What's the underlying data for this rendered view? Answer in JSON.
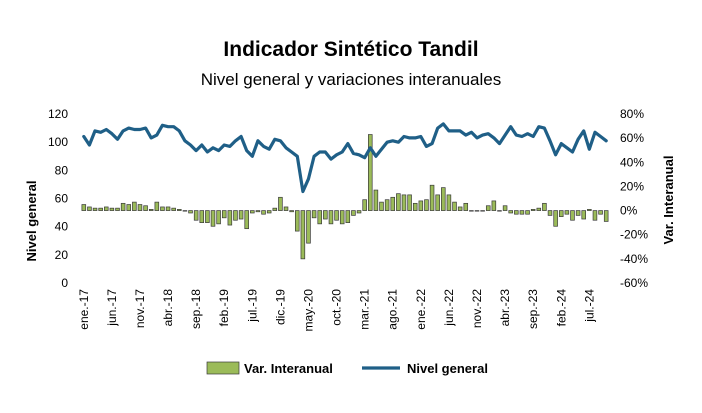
{
  "chart_data": {
    "type": "bar+line",
    "title": "Indicador Sintético Tandil",
    "subtitle": "Nivel general y variaciones interanuales",
    "ylabel_left": "Nivel general",
    "ylabel_right": "Var. Interanual",
    "left_axis": {
      "min": 0,
      "max": 120,
      "ticks": [
        "0",
        "20",
        "40",
        "60",
        "80",
        "100",
        "120"
      ]
    },
    "right_axis": {
      "min": -0.6,
      "max": 0.8,
      "ticks": [
        "-60%",
        "-40%",
        "-20%",
        "0%",
        "20%",
        "40%",
        "60%",
        "80%"
      ]
    },
    "x_tick_labels": [
      {
        "i": 0,
        "label": "ene.-17"
      },
      {
        "i": 5,
        "label": "jun.-17"
      },
      {
        "i": 10,
        "label": "nov.-17"
      },
      {
        "i": 15,
        "label": "abr.-18"
      },
      {
        "i": 20,
        "label": "sep.-18"
      },
      {
        "i": 25,
        "label": "feb.-19"
      },
      {
        "i": 30,
        "label": "jul.-19"
      },
      {
        "i": 35,
        "label": "dic.-19"
      },
      {
        "i": 40,
        "label": "may.-20"
      },
      {
        "i": 45,
        "label": "oct.-20"
      },
      {
        "i": 50,
        "label": "mar.-21"
      },
      {
        "i": 55,
        "label": "ago.-21"
      },
      {
        "i": 60,
        "label": "ene.-22"
      },
      {
        "i": 65,
        "label": "jun.-22"
      },
      {
        "i": 70,
        "label": "nov.-22"
      },
      {
        "i": 75,
        "label": "abr.-23"
      },
      {
        "i": 80,
        "label": "sep.-23"
      },
      {
        "i": 85,
        "label": "feb.-24"
      },
      {
        "i": 90,
        "label": "jul.-24"
      }
    ],
    "series": [
      {
        "name": "Nivel general",
        "type": "line",
        "axis": "left",
        "color": "#1f5f87",
        "values": [
          104,
          98,
          108,
          107,
          109,
          106,
          102,
          108,
          110,
          109,
          109,
          110,
          103,
          105,
          112,
          111,
          111,
          108,
          101,
          98,
          94,
          98,
          93,
          96,
          94,
          98,
          97,
          101,
          104,
          94,
          90,
          101,
          97,
          95,
          102,
          101,
          96,
          93,
          90,
          65,
          74,
          90,
          93,
          93,
          88,
          91,
          93,
          99,
          92,
          91,
          89,
          96,
          90,
          95,
          100,
          101,
          100,
          104,
          103,
          103,
          104,
          97,
          99,
          110,
          113,
          108,
          108,
          108,
          105,
          107,
          103,
          105,
          106,
          103,
          99,
          105,
          111,
          105,
          104,
          106,
          104,
          111,
          110,
          101,
          91,
          99,
          96,
          93,
          102,
          108,
          95,
          107,
          104,
          101
        ],
        "show_label": true
      },
      {
        "name": "Var. Interanual",
        "type": "bar",
        "axis": "right",
        "color": "#9bbb59",
        "values": [
          0.05,
          0.03,
          0.02,
          0.02,
          0.03,
          0.02,
          0.02,
          0.06,
          0.05,
          0.07,
          0.05,
          0.04,
          0.01,
          0.07,
          0.03,
          0.03,
          0.02,
          0.01,
          0.0,
          -0.02,
          -0.08,
          -0.1,
          -0.1,
          -0.13,
          -0.11,
          -0.06,
          -0.12,
          -0.08,
          -0.07,
          -0.15,
          -0.02,
          -0.01,
          -0.03,
          -0.02,
          0.02,
          0.11,
          0.03,
          -0.01,
          -0.17,
          -0.4,
          -0.27,
          -0.06,
          -0.11,
          -0.07,
          -0.11,
          -0.08,
          -0.11,
          -0.1,
          -0.04,
          -0.02,
          0.09,
          0.63,
          0.17,
          0.07,
          0.09,
          0.11,
          0.14,
          0.13,
          0.13,
          0.06,
          0.08,
          0.09,
          0.21,
          0.13,
          0.19,
          0.13,
          0.07,
          0.03,
          0.06,
          0.0,
          0.0,
          0.0,
          0.04,
          0.08,
          0.0,
          0.04,
          -0.02,
          -0.03,
          -0.03,
          -0.03,
          0.01,
          0.02,
          0.06,
          -0.04,
          -0.13,
          -0.05,
          -0.03,
          -0.08,
          -0.04,
          -0.07,
          0.01,
          -0.08,
          -0.03,
          -0.09
        ],
        "show_label": true
      }
    ],
    "legend": [
      "Var. Interanual",
      "Nivel general"
    ],
    "legend_position": "bottom"
  }
}
